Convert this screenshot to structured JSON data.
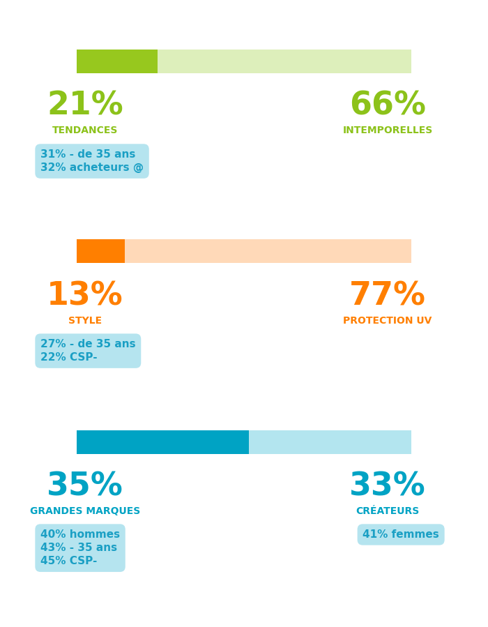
{
  "chart_data": [
    {
      "type": "bar",
      "orientation": "horizontal",
      "stacked": true,
      "categories": [
        null
      ],
      "xlim": [
        0,
        87
      ],
      "xticks": [],
      "tick_labels": false,
      "data_labels": true,
      "series": [
        {
          "name": "TENDANCES",
          "color": "#97c81e",
          "values": [
            21
          ],
          "value_labels": [
            "21%"
          ],
          "annotations": [
            "31% - de 35 ans",
            "32% acheteurs @"
          ]
        },
        {
          "name": "INTEMPORELLES",
          "color": "#ddefbb",
          "values": [
            66
          ],
          "value_labels": [
            "66%"
          ]
        }
      ]
    },
    {
      "type": "bar",
      "orientation": "horizontal",
      "stacked": true,
      "categories": [
        null
      ],
      "xlim": [
        0,
        90
      ],
      "xticks": [],
      "tick_labels": false,
      "data_labels": true,
      "series": [
        {
          "name": "STYLE",
          "color": "#ff7f00",
          "values": [
            13
          ],
          "value_labels": [
            "13%"
          ],
          "annotations": [
            "27% - de 35 ans",
            "22% CSP-"
          ]
        },
        {
          "name": "PROTECTION UV",
          "color": "#ffd9b8",
          "values": [
            77
          ],
          "value_labels": [
            "77%"
          ]
        }
      ]
    },
    {
      "type": "bar",
      "orientation": "horizontal",
      "stacked": true,
      "categories": [
        null
      ],
      "xlim": [
        0,
        68
      ],
      "xticks": [],
      "tick_labels": false,
      "data_labels": true,
      "series": [
        {
          "name": "GRANDES MARQUES",
          "color": "#00a3c4",
          "values": [
            35
          ],
          "value_labels": [
            "35%"
          ],
          "annotations": [
            "40% hommes",
            "43% - 35 ans",
            "45% CSP-"
          ]
        },
        {
          "name": "CRÉATEURS",
          "color": "#b3e5ef",
          "values": [
            33
          ],
          "value_labels": [
            "33%"
          ],
          "annotations": [
            "41% femmes"
          ]
        }
      ]
    }
  ]
}
